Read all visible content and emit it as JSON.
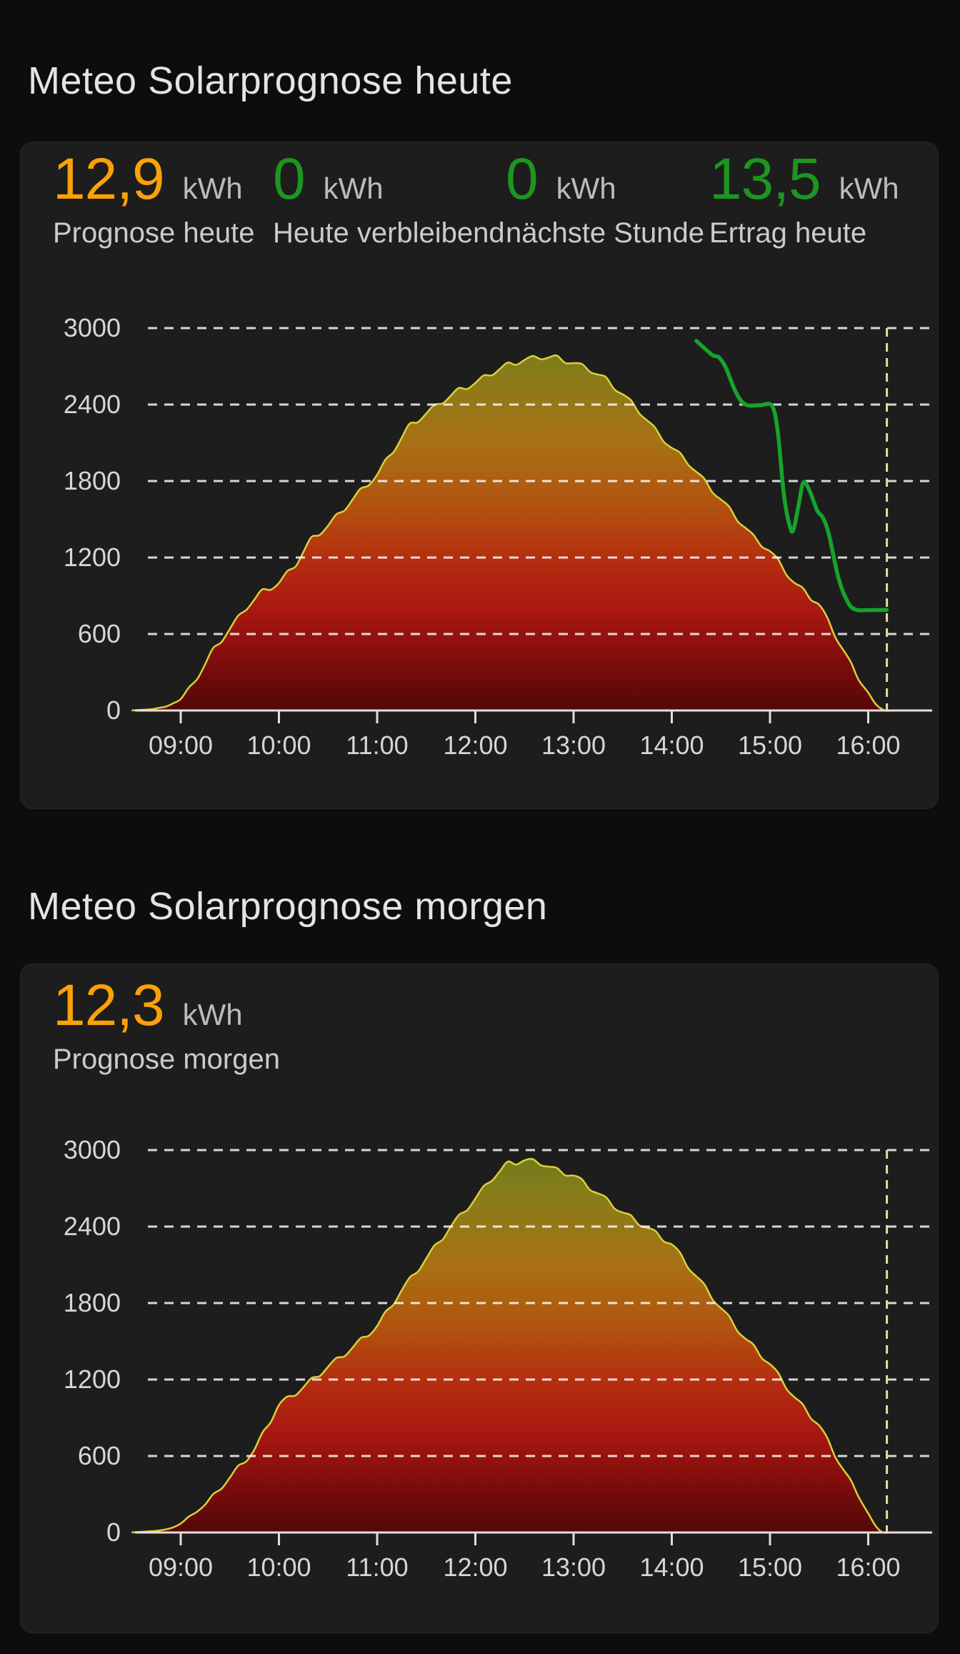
{
  "cards": [
    {
      "title": "Meteo Solarprognose heute",
      "stats": [
        {
          "value": "12,9",
          "unit": "kWh",
          "label": "Prognose heute",
          "color": "#f9a208"
        },
        {
          "value": "0",
          "unit": "kWh",
          "label": "Heute verbleibend",
          "color": "#1d9520"
        },
        {
          "value": "0",
          "unit": "kWh",
          "label": "nächste Stunde",
          "color": "#1d9520"
        },
        {
          "value": "13,5",
          "unit": "kWh",
          "label": "Ertrag heute",
          "color": "#1d9520"
        }
      ],
      "chart_data": {
        "type": "area",
        "title": "Solar forecast today (W per time of day) with actual production line",
        "xlabel": "",
        "ylabel": "",
        "x_ticks": [
          "09:00",
          "10:00",
          "11:00",
          "12:00",
          "13:00",
          "14:00",
          "15:00",
          "16:00"
        ],
        "x_tick_hours": [
          9,
          10,
          11,
          12,
          13,
          14,
          15,
          16
        ],
        "y_ticks": [
          0,
          600,
          1200,
          1800,
          2400,
          3000
        ],
        "ylim": [
          0,
          3000
        ],
        "xlim_hours": [
          8.45,
          16.65
        ],
        "grid": "horizontal dashed",
        "legend": "none",
        "now_marker_hour": 16.19,
        "series": [
          {
            "name": "forecast",
            "render": "area",
            "points": [
              [
                8.5,
                0
              ],
              [
                8.7,
                10
              ],
              [
                8.85,
                30
              ],
              [
                9.0,
                90
              ],
              [
                9.17,
                260
              ],
              [
                9.33,
                470
              ],
              [
                9.5,
                640
              ],
              [
                9.67,
                810
              ],
              [
                9.83,
                930
              ],
              [
                10.0,
                1000
              ],
              [
                10.17,
                1150
              ],
              [
                10.33,
                1340
              ],
              [
                10.5,
                1450
              ],
              [
                10.67,
                1590
              ],
              [
                10.83,
                1720
              ],
              [
                11.0,
                1850
              ],
              [
                11.17,
                2050
              ],
              [
                11.33,
                2230
              ],
              [
                11.5,
                2330
              ],
              [
                11.67,
                2430
              ],
              [
                11.83,
                2510
              ],
              [
                12.0,
                2570
              ],
              [
                12.17,
                2650
              ],
              [
                12.33,
                2710
              ],
              [
                12.5,
                2750
              ],
              [
                12.67,
                2775
              ],
              [
                12.83,
                2765
              ],
              [
                13.0,
                2725
              ],
              [
                13.17,
                2675
              ],
              [
                13.33,
                2595
              ],
              [
                13.5,
                2480
              ],
              [
                13.67,
                2350
              ],
              [
                13.83,
                2200
              ],
              [
                14.0,
                2060
              ],
              [
                14.17,
                1945
              ],
              [
                14.33,
                1800
              ],
              [
                14.5,
                1655
              ],
              [
                14.67,
                1505
              ],
              [
                14.83,
                1360
              ],
              [
                15.0,
                1250
              ],
              [
                15.25,
                1000
              ],
              [
                15.5,
                830
              ],
              [
                15.75,
                470
              ],
              [
                15.9,
                250
              ],
              [
                16.0,
                140
              ],
              [
                16.08,
                45
              ],
              [
                16.17,
                0
              ],
              [
                16.65,
                0
              ]
            ]
          },
          {
            "name": "actual",
            "render": "line",
            "points": [
              [
                14.25,
                2900
              ],
              [
                14.35,
                2830
              ],
              [
                14.42,
                2785
              ],
              [
                14.48,
                2770
              ],
              [
                14.55,
                2690
              ],
              [
                14.65,
                2500
              ],
              [
                14.75,
                2400
              ],
              [
                14.9,
                2395
              ],
              [
                15.02,
                2390
              ],
              [
                15.08,
                2180
              ],
              [
                15.14,
                1700
              ],
              [
                15.2,
                1450
              ],
              [
                15.24,
                1420
              ],
              [
                15.3,
                1650
              ],
              [
                15.34,
                1790
              ],
              [
                15.4,
                1730
              ],
              [
                15.48,
                1570
              ],
              [
                15.54,
                1510
              ],
              [
                15.6,
                1380
              ],
              [
                15.7,
                1030
              ],
              [
                15.8,
                840
              ],
              [
                15.88,
                790
              ],
              [
                16.0,
                788
              ],
              [
                16.1,
                788
              ],
              [
                16.19,
                790
              ]
            ]
          }
        ]
      }
    },
    {
      "title": "Meteo Solarprognose morgen",
      "stats": [
        {
          "value": "12,3",
          "unit": "kWh",
          "label": "Prognose morgen",
          "color": "#f9a208"
        }
      ],
      "chart_data": {
        "type": "area",
        "title": "Solar forecast tomorrow (W per time of day)",
        "xlabel": "",
        "ylabel": "",
        "x_ticks": [
          "09:00",
          "10:00",
          "11:00",
          "12:00",
          "13:00",
          "14:00",
          "15:00",
          "16:00"
        ],
        "x_tick_hours": [
          9,
          10,
          11,
          12,
          13,
          14,
          15,
          16
        ],
        "y_ticks": [
          0,
          600,
          1200,
          1800,
          2400,
          3000
        ],
        "ylim": [
          0,
          3000
        ],
        "xlim_hours": [
          8.45,
          16.65
        ],
        "grid": "horizontal dashed",
        "legend": "none",
        "now_marker_hour": 16.19,
        "series": [
          {
            "name": "forecast",
            "render": "area",
            "points": [
              [
                8.5,
                0
              ],
              [
                8.78,
                15
              ],
              [
                8.9,
                35
              ],
              [
                9.0,
                70
              ],
              [
                9.25,
                220
              ],
              [
                9.5,
                430
              ],
              [
                9.75,
                650
              ],
              [
                10.0,
                1000
              ],
              [
                10.25,
                1140
              ],
              [
                10.5,
                1300
              ],
              [
                10.75,
                1450
              ],
              [
                11.0,
                1620
              ],
              [
                11.25,
                1900
              ],
              [
                11.5,
                2150
              ],
              [
                11.75,
                2400
              ],
              [
                12.0,
                2620
              ],
              [
                12.17,
                2780
              ],
              [
                12.33,
                2890
              ],
              [
                12.5,
                2920
              ],
              [
                12.67,
                2900
              ],
              [
                12.83,
                2840
              ],
              [
                13.0,
                2800
              ],
              [
                13.25,
                2660
              ],
              [
                13.5,
                2510
              ],
              [
                13.75,
                2390
              ],
              [
                14.0,
                2260
              ],
              [
                14.25,
                2010
              ],
              [
                14.5,
                1760
              ],
              [
                14.75,
                1520
              ],
              [
                15.0,
                1320
              ],
              [
                15.25,
                1060
              ],
              [
                15.5,
                840
              ],
              [
                15.75,
                490
              ],
              [
                15.9,
                290
              ],
              [
                16.0,
                150
              ],
              [
                16.08,
                45
              ],
              [
                16.15,
                0
              ],
              [
                16.65,
                0
              ]
            ]
          }
        ]
      }
    }
  ],
  "colors": {
    "page_background": "#0d0d0d",
    "card_background": "#1d1d1d",
    "title_text": "#e4e4e4",
    "stat_orange": "#f9a208",
    "stat_green": "#1d9520",
    "unit_text": "#bcbcbc",
    "label_text": "#cbcbcb",
    "axis_text": "#d6d6d6",
    "gridline": "rgba(255,255,255,0.82)",
    "baseline": "#e9dcdc",
    "area_stroke_yellow": "#d8d139",
    "actual_line_green": "#16a32c",
    "now_marker_khaki": "#e9e095",
    "area_gradient_stops": [
      [
        0.0,
        "#6e7d1e"
      ],
      [
        0.14,
        "#8c7b19"
      ],
      [
        0.3,
        "#a87113"
      ],
      [
        0.46,
        "#b25410"
      ],
      [
        0.6,
        "#b42f10"
      ],
      [
        0.74,
        "#aa1710"
      ],
      [
        0.88,
        "#7c0c0b"
      ],
      [
        1.0,
        "#540808"
      ]
    ]
  }
}
